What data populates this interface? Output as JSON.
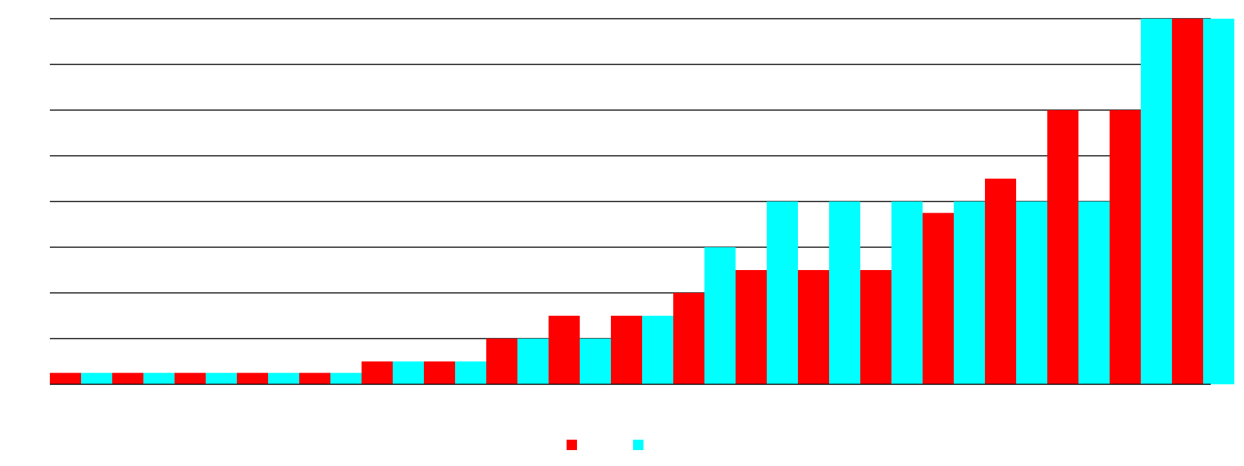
{
  "chart_data": {
    "type": "bar",
    "title": "",
    "xlabel": "",
    "ylabel": "",
    "ylim": [
      0,
      16
    ],
    "grid": true,
    "legend_position": "bottom-center",
    "categories": [
      "",
      "",
      "",
      "",
      "",
      "",
      "",
      "",
      "",
      "",
      "",
      "",
      "",
      "",
      "",
      "",
      "",
      ""
    ],
    "series": [
      {
        "name": "",
        "color": "#ff0000",
        "values": [
          0.5,
          0.5,
          0.5,
          0.5,
          0.5,
          1,
          1,
          2,
          3,
          3,
          4,
          5,
          5,
          5,
          7.5,
          9,
          12,
          12
        ]
      },
      {
        "name": "",
        "color": "#00ffff",
        "values": [
          0.5,
          0.5,
          0.5,
          0.5,
          0.5,
          1,
          1,
          2,
          2,
          3,
          6,
          8,
          8,
          8,
          8,
          8,
          8,
          16
        ]
      }
    ],
    "trailing_bar": {
      "series": 0,
      "value": 16,
      "extra_series1_value": 16
    }
  }
}
